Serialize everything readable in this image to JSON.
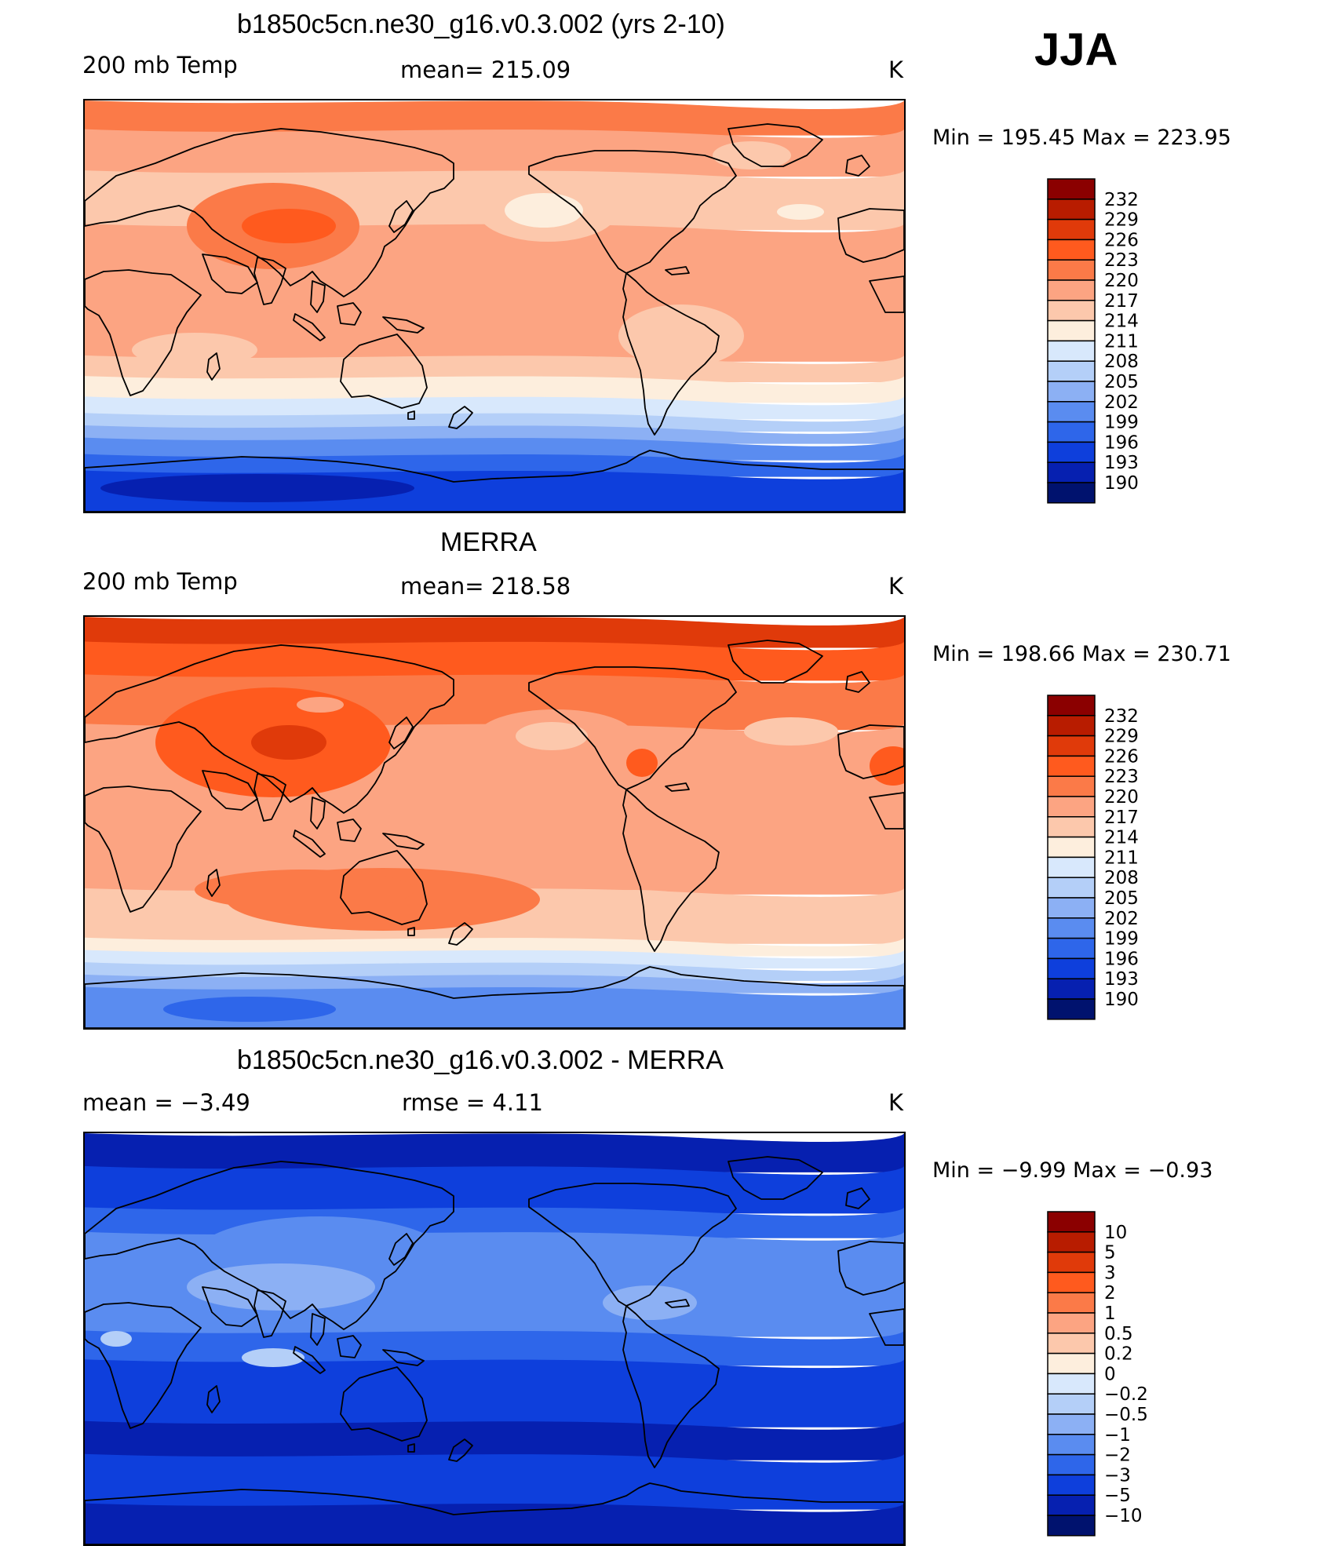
{
  "season": "JJA",
  "panels": [
    {
      "title": "b1850c5cn.ne30_g16.v0.3.002 (yrs 2-10)",
      "left_text": "200 mb Temp",
      "mid_text": "mean= 215.09",
      "unit": "K",
      "minmax": "Min =  195.45  Max =  223.95",
      "scheme": "model"
    },
    {
      "title": "MERRA",
      "left_text": "200 mb Temp",
      "mid_text": "mean= 218.58",
      "unit": "K",
      "minmax": "Min =  198.66  Max =  230.71",
      "scheme": "merra"
    },
    {
      "title": "b1850c5cn.ne30_g16.v0.3.002 - MERRA",
      "left_text": "mean =    −3.49",
      "mid_text": "rmse =     4.11",
      "unit": "K",
      "minmax": "Min =   −9.99  Max =   −0.93",
      "scheme": "diff"
    }
  ],
  "colorbars": {
    "abs_levels": [
      "232",
      "229",
      "226",
      "223",
      "220",
      "217",
      "214",
      "211",
      "208",
      "205",
      "202",
      "199",
      "196",
      "193",
      "190"
    ],
    "diff_levels": [
      "10",
      "5",
      "3",
      "2",
      "1",
      "0.5",
      "0.2",
      "0",
      "−0.2",
      "−0.5",
      "−1",
      "−2",
      "−3",
      "−5",
      "−10"
    ],
    "colors": [
      "#8b0000",
      "#b81c00",
      "#e03a0a",
      "#ff5a1e",
      "#fb7a48",
      "#fca482",
      "#fcc8ac",
      "#fdeedd",
      "#d8e8fc",
      "#b4cff8",
      "#8cb0f4",
      "#5a8cf0",
      "#2e66ea",
      "#0e3fdc",
      "#0620b0",
      "#00126e"
    ]
  }
}
